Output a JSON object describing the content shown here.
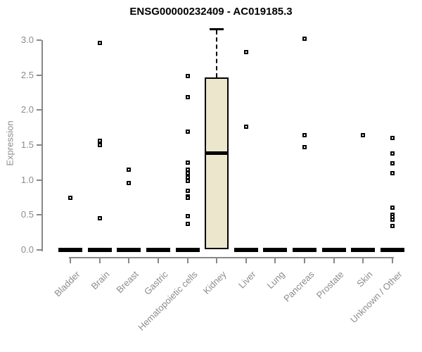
{
  "title": "ENSG00000232409 - AC019185.3",
  "colors": {
    "box_fill": "#ece6cc",
    "axis": "#888888",
    "axis_text": "#8c8c8c",
    "ink": "#000000"
  },
  "chart_data": {
    "type": "boxplot",
    "title": "ENSG00000232409 - AC019185.3",
    "xlabel": "",
    "ylabel": "Expression",
    "ylim": [
      0,
      3.2
    ],
    "ytick_labels": [
      "0.0",
      "0.5",
      "1.0",
      "1.5",
      "2.0",
      "2.5",
      "3.0"
    ],
    "ytick_values": [
      0,
      0.5,
      1,
      1.5,
      2,
      2.5,
      3
    ],
    "grid": false,
    "legend": "none",
    "categories": [
      "Bladder",
      "Brain",
      "Breast",
      "Gastric",
      "Hematopoietic cells",
      "Kidney",
      "Liver",
      "Lung",
      "Pancreas",
      "Prostate",
      "Skin",
      "Unknown / Other"
    ],
    "series": [
      {
        "category": "Bladder",
        "box": {
          "median": 0
        },
        "points": [
          0.75
        ]
      },
      {
        "category": "Brain",
        "box": {
          "median": 0
        },
        "points": [
          2.96,
          1.56,
          1.5,
          0.45
        ]
      },
      {
        "category": "Breast",
        "box": {
          "median": 0
        },
        "points": [
          1.15,
          0.96
        ]
      },
      {
        "category": "Gastric",
        "box": {
          "median": 0
        },
        "points": []
      },
      {
        "category": "Hematopoietic cells",
        "box": {
          "median": 0
        },
        "points": [
          2.49,
          2.18,
          1.69,
          1.25,
          1.15,
          1.1,
          1.04,
          0.99,
          0.85,
          0.77,
          0.74,
          0.48,
          0.37
        ]
      },
      {
        "category": "Kidney",
        "box": {
          "q1": 0.01,
          "median": 1.39,
          "q3": 2.47,
          "whisker_high": 3.16
        },
        "points": []
      },
      {
        "category": "Liver",
        "box": {
          "median": 0
        },
        "points": [
          2.83,
          1.76
        ]
      },
      {
        "category": "Lung",
        "box": {
          "median": 0
        },
        "points": []
      },
      {
        "category": "Pancreas",
        "box": {
          "median": 0
        },
        "points": [
          3.02,
          1.64,
          1.47
        ]
      },
      {
        "category": "Prostate",
        "box": {
          "median": 0
        },
        "points": []
      },
      {
        "category": "Skin",
        "box": {
          "median": 0
        },
        "points": [
          1.64
        ]
      },
      {
        "category": "Unknown / Other",
        "box": {
          "median": 0
        },
        "points": [
          1.6,
          1.38,
          1.24,
          1.1,
          0.6,
          0.5,
          0.47,
          0.43,
          0.34
        ]
      }
    ]
  }
}
